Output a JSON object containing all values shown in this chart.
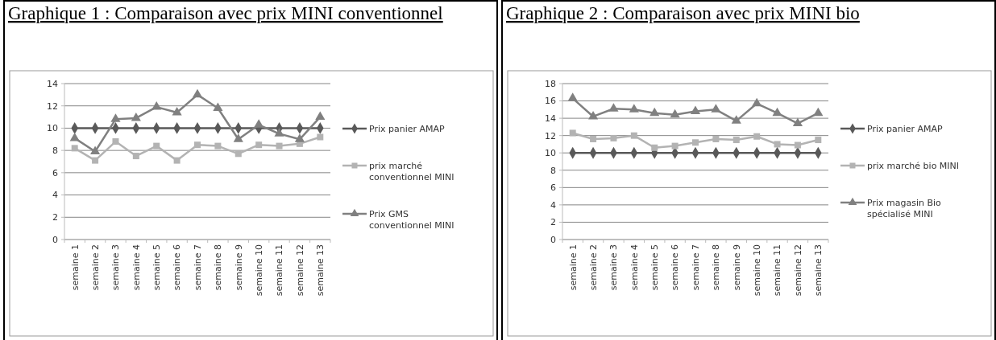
{
  "chart_data": [
    {
      "type": "line",
      "title": "Graphique 1 : Comparaison avec prix MINI conventionnel",
      "categories": [
        "semaine 1",
        "semaine 2",
        "semaine 3",
        "semaine 4",
        "semaine 5",
        "semaine 6",
        "semaine 7",
        "semaine 8",
        "semaine 9",
        "semaine 10",
        "semaine 11",
        "semaine 12",
        "semaine 13"
      ],
      "series": [
        {
          "name": "Prix panier AMAP",
          "color": "#595959",
          "marker": "diamond",
          "values": [
            10,
            10,
            10,
            10,
            10,
            10,
            10,
            10,
            10,
            10,
            10,
            10,
            10
          ]
        },
        {
          "name": "prix marché conventionnel MINI",
          "color": "#b3b3b3",
          "marker": "square",
          "values": [
            8.2,
            7.1,
            8.8,
            7.5,
            8.4,
            7.1,
            8.5,
            8.4,
            7.7,
            8.5,
            8.4,
            8.6,
            9.2
          ]
        },
        {
          "name": "Prix GMS conventionnel MINI",
          "color": "#808080",
          "marker": "triangle",
          "values": [
            9.1,
            7.9,
            10.8,
            10.9,
            11.9,
            11.4,
            13,
            11.8,
            9,
            10.3,
            9.5,
            9,
            11
          ]
        }
      ],
      "ylim": [
        0,
        14
      ],
      "yticks": [
        0,
        2,
        4,
        6,
        8,
        10,
        12,
        14
      ],
      "grid": "y",
      "legend": "right"
    },
    {
      "type": "line",
      "title": "Graphique 2 : Comparaison avec prix MINI bio",
      "categories": [
        "semaine 1",
        "semaine 2",
        "semaine 3",
        "semaine 4",
        "semaine 5",
        "semaine 6",
        "semaine 7",
        "semaine 8",
        "semaine 9",
        "semaine 10",
        "semaine 11",
        "semaine 12",
        "semaine 13"
      ],
      "series": [
        {
          "name": "Prix panier AMAP",
          "color": "#595959",
          "marker": "diamond",
          "values": [
            10,
            10,
            10,
            10,
            10,
            10,
            10,
            10,
            10,
            10,
            10,
            10,
            10
          ]
        },
        {
          "name": "prix marché bio MINI",
          "color": "#b3b3b3",
          "marker": "square",
          "values": [
            12.3,
            11.6,
            11.7,
            12,
            10.6,
            10.8,
            11.2,
            11.6,
            11.5,
            11.9,
            11,
            10.9,
            11.5
          ]
        },
        {
          "name": "Prix magasin Bio spécialisé MINI",
          "color": "#808080",
          "marker": "triangle",
          "values": [
            16.3,
            14.2,
            15.1,
            15,
            14.6,
            14.4,
            14.8,
            15,
            13.7,
            15.7,
            14.6,
            13.4,
            14.6
          ]
        }
      ],
      "ylim": [
        0,
        18
      ],
      "yticks": [
        0,
        2,
        4,
        6,
        8,
        10,
        12,
        14,
        16,
        18
      ],
      "grid": "y",
      "legend": "right"
    }
  ]
}
